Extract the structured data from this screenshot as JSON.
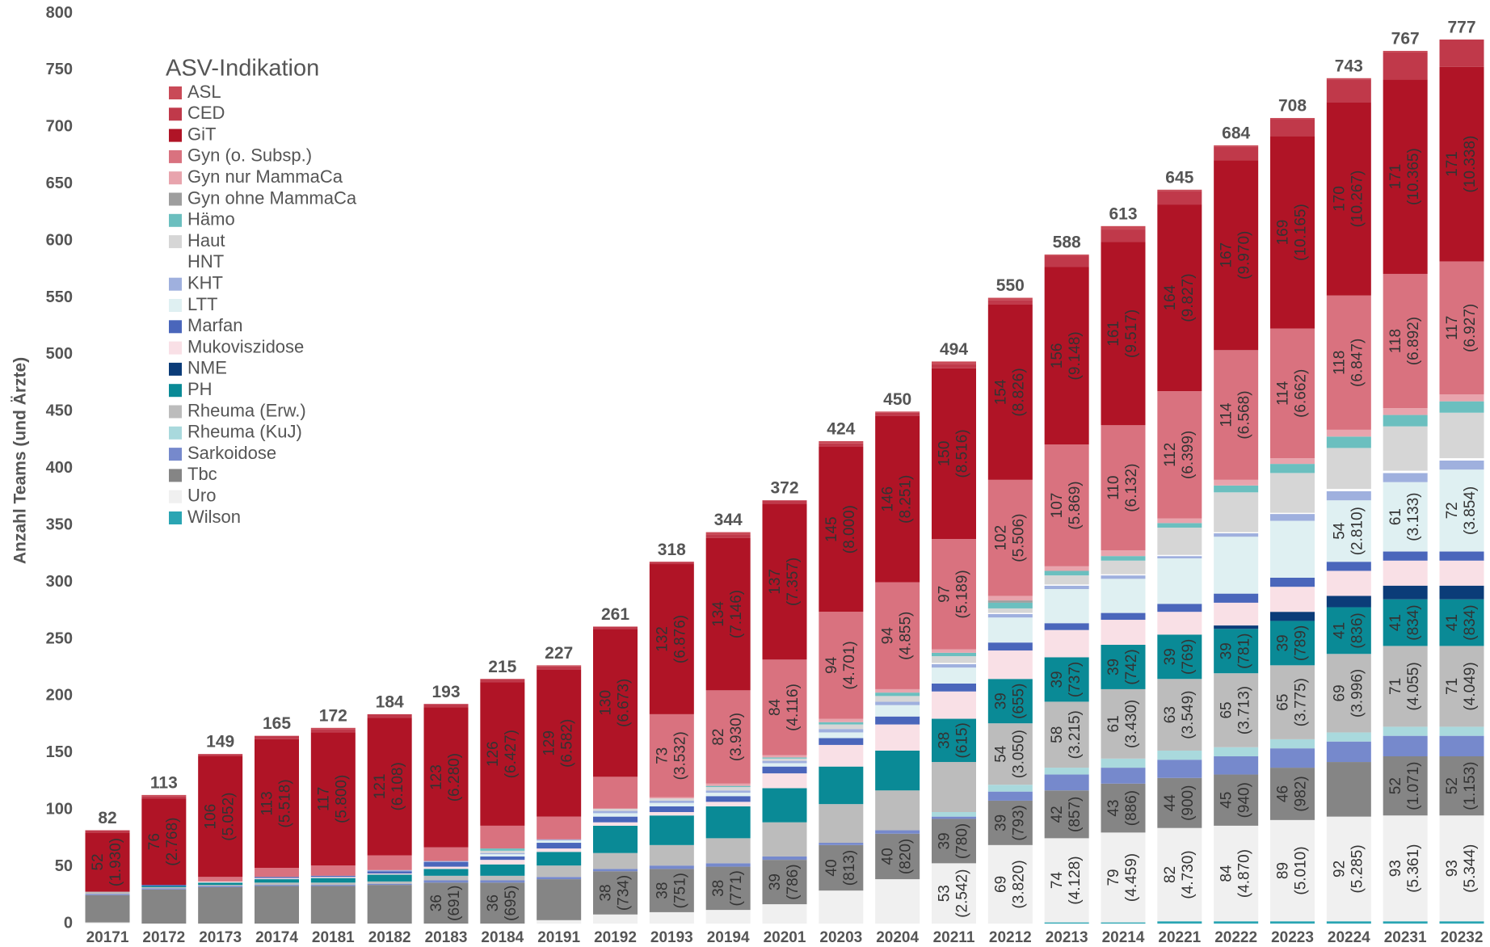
{
  "chart_data": {
    "type": "stacked_bar",
    "y_label": "Anzahl Teams (und Ärzte)",
    "legend_title": "ASV-Indikation",
    "categories": [
      "20171",
      "20172",
      "20173",
      "20174",
      "20181",
      "20182",
      "20183",
      "20184",
      "20191",
      "20192",
      "20193",
      "20194",
      "20201",
      "20203",
      "20204",
      "20211",
      "20212",
      "20213",
      "20214",
      "20221",
      "20222",
      "20223",
      "20224",
      "20231",
      "20232"
    ],
    "totals": [
      82,
      113,
      149,
      165,
      172,
      184,
      193,
      215,
      227,
      261,
      318,
      344,
      372,
      424,
      450,
      494,
      550,
      588,
      613,
      645,
      684,
      708,
      743,
      767,
      777
    ],
    "ylim": [
      0,
      800
    ],
    "yticks": [
      0,
      50,
      100,
      150,
      200,
      250,
      300,
      350,
      400,
      450,
      500,
      550,
      600,
      650,
      700,
      750,
      800
    ],
    "series": [
      {
        "name": "ASL",
        "color": "#c94a57",
        "values": [
          0,
          1,
          0,
          0,
          1,
          0,
          0,
          0,
          1,
          0,
          0,
          2,
          0,
          2,
          1,
          2,
          2,
          1,
          3,
          1,
          1,
          1,
          1,
          1,
          0
        ]
      },
      {
        "name": "CED",
        "color": "#c0394a",
        "values": [
          2,
          2,
          2,
          3,
          3,
          3,
          3,
          3,
          3,
          2,
          2,
          3,
          3,
          3,
          3,
          4,
          4,
          10,
          11,
          12,
          12,
          15,
          20,
          24,
          24
        ]
      },
      {
        "name": "GiT",
        "color": "#b01426",
        "values": [
          52,
          76,
          106,
          113,
          117,
          121,
          123,
          126,
          129,
          130,
          132,
          134,
          137,
          145,
          146,
          150,
          154,
          156,
          161,
          164,
          167,
          169,
          170,
          171,
          171
        ],
        "value_labels": [
          "52\n(1.930)",
          "76\n(2.768)",
          "106\n(5.052)",
          "113\n(5.518)",
          "117\n(5.800)",
          "121\n(6.108)",
          "123\n(6.280)",
          "126\n(6.427)",
          "129\n(6.582)",
          "130\n(6.673)",
          "132\n(6.876)",
          "134\n(7.146)",
          "137\n(7.357)",
          "145\n(8.000)",
          "146\n(8.251)",
          "150\n(8.516)",
          "154\n(8.826)",
          "156\n(9.148)",
          "161\n(9.517)",
          "164\n(9.827)",
          "167\n(9.970)",
          "169\n(10.165)",
          "170\n(10.267)",
          "171\n(10.365)",
          "171\n(10.338)"
        ]
      },
      {
        "name": "Gyn (o. Subsp.)",
        "color": "#d9727f",
        "values": [
          0,
          0,
          4,
          8,
          9,
          13,
          12,
          20,
          20,
          28,
          73,
          82,
          84,
          94,
          94,
          97,
          102,
          107,
          110,
          112,
          114,
          114,
          118,
          118,
          117
        ],
        "value_labels": [
          null,
          null,
          null,
          null,
          null,
          null,
          null,
          null,
          null,
          null,
          "73\n(3.532)",
          "82\n(3.930)",
          "84\n(4.116)",
          "94\n(4.701)",
          "94\n(4.855)",
          "97\n(5.189)",
          "102\n(5.506)",
          "107\n(5.869)",
          "110\n(6.132)",
          "112\n(6.399)",
          "114\n(6.568)",
          "114\n(6.662)",
          "118\n(6.847)",
          "118\n(6.892)",
          "117\n(6.927)"
        ]
      },
      {
        "name": "Gyn nur MammaCa",
        "color": "#e8a4ad",
        "values": [
          0,
          0,
          0,
          0,
          0,
          0,
          0,
          0,
          0,
          0,
          1,
          2,
          2,
          3,
          3,
          3,
          4,
          4,
          5,
          4,
          5,
          5,
          6,
          6,
          6
        ]
      },
      {
        "name": "Gyn ohne MammaCa",
        "color": "#9e9e9e",
        "values": [
          0,
          0,
          0,
          0,
          0,
          0,
          0,
          0,
          0,
          0,
          0,
          0,
          0,
          0,
          0,
          0,
          2,
          0,
          0,
          0,
          0,
          0,
          0,
          0,
          0
        ]
      },
      {
        "name": "Hämo",
        "color": "#6bbfbf",
        "values": [
          0,
          0,
          0,
          0,
          0,
          0,
          0,
          2,
          0,
          0,
          0,
          1,
          1,
          2,
          3,
          3,
          5,
          4,
          4,
          4,
          6,
          8,
          10,
          10,
          10
        ]
      },
      {
        "name": "Haut",
        "color": "#d6d6d6",
        "values": [
          0,
          0,
          0,
          0,
          0,
          0,
          0,
          2,
          0,
          2,
          2,
          3,
          2,
          4,
          5,
          6,
          4,
          8,
          12,
          24,
          35,
          35,
          36,
          39,
          40
        ]
      },
      {
        "name": "HNT",
        "color": "#ffffff",
        "values": [
          0,
          0,
          0,
          0,
          0,
          0,
          0,
          0,
          0,
          0,
          0,
          0,
          0,
          0,
          0,
          1,
          1,
          1,
          1,
          1,
          1,
          1,
          2,
          2,
          2
        ]
      },
      {
        "name": "KHT",
        "color": "#9fb0de",
        "values": [
          0,
          0,
          0,
          0,
          0,
          1,
          1,
          1,
          1,
          2,
          2,
          2,
          2,
          3,
          3,
          3,
          3,
          3,
          3,
          2,
          3,
          6,
          8,
          8,
          8
        ]
      },
      {
        "name": "LTT",
        "color": "#dff0f2",
        "values": [
          0,
          0,
          0,
          0,
          0,
          0,
          0,
          2,
          2,
          3,
          3,
          3,
          3,
          5,
          10,
          14,
          22,
          30,
          30,
          40,
          50,
          50,
          54,
          61,
          72
        ],
        "value_labels": [
          null,
          null,
          null,
          null,
          null,
          null,
          null,
          null,
          null,
          null,
          null,
          null,
          null,
          null,
          null,
          null,
          null,
          null,
          null,
          null,
          null,
          null,
          "54\n(2.810)",
          "61\n(3.133)",
          "72\n(3.854)"
        ]
      },
      {
        "name": "Marfan",
        "color": "#4a66bb",
        "values": [
          0,
          1,
          0,
          1,
          1,
          2,
          4,
          3,
          5,
          5,
          5,
          5,
          6,
          6,
          7,
          7,
          7,
          6,
          6,
          7,
          8,
          8,
          8,
          8,
          8
        ]
      },
      {
        "name": "Mukoviszidose",
        "color": "#f9e0e6",
        "values": [
          0,
          0,
          1,
          1,
          1,
          1,
          2,
          4,
          3,
          3,
          3,
          4,
          13,
          19,
          23,
          24,
          25,
          24,
          22,
          20,
          20,
          22,
          22,
          22,
          22
        ]
      },
      {
        "name": "NME",
        "color": "#0b3c78",
        "values": [
          0,
          0,
          0,
          0,
          0,
          0,
          0,
          0,
          0,
          0,
          0,
          0,
          0,
          0,
          0,
          0,
          0,
          0,
          0,
          0,
          3,
          8,
          10,
          12,
          12
        ]
      },
      {
        "name": "PH",
        "color": "#0a8a96",
        "values": [
          0,
          1,
          2,
          3,
          4,
          6,
          6,
          10,
          12,
          24,
          26,
          28,
          30,
          33,
          35,
          38,
          39,
          39,
          39,
          39,
          39,
          39,
          41,
          41,
          41
        ],
        "value_labels": [
          null,
          null,
          null,
          null,
          null,
          null,
          null,
          null,
          null,
          null,
          null,
          null,
          null,
          null,
          null,
          "38\n(615)",
          "39\n(655)",
          "39\n(737)",
          "39\n(742)",
          "39\n(769)",
          "39\n(781)",
          "39\n(789)",
          "41\n(836)",
          "41\n(834)",
          "41\n(834)"
        ]
      },
      {
        "name": "Rheuma (Erw.)",
        "color": "#bcbcbc",
        "values": [
          2,
          1,
          1,
          2,
          2,
          2,
          4,
          4,
          10,
          14,
          18,
          22,
          30,
          34,
          35,
          44,
          54,
          58,
          61,
          63,
          65,
          65,
          69,
          71,
          71
        ],
        "value_labels": [
          null,
          null,
          null,
          null,
          null,
          null,
          null,
          null,
          null,
          null,
          null,
          null,
          null,
          null,
          null,
          null,
          "54\n(3.050)",
          "58\n(3.215)",
          "61\n(3.430)",
          "63\n(3.549)",
          "65\n(3.713)",
          "65\n(3.775)",
          "69\n(3.996)",
          "71\n(4.055)",
          "71\n(4.049)"
        ]
      },
      {
        "name": "Rheuma (KuJ)",
        "color": "#a9d9dd",
        "values": [
          0,
          0,
          0,
          0,
          0,
          0,
          0,
          0,
          0,
          0,
          0,
          0,
          0,
          0,
          0,
          4,
          6,
          6,
          8,
          8,
          8,
          8,
          8,
          8,
          8
        ]
      },
      {
        "name": "Sarkoidose",
        "color": "#7689cc",
        "values": [
          1,
          1,
          1,
          1,
          1,
          1,
          2,
          2,
          2,
          2,
          3,
          3,
          3,
          2,
          3,
          2,
          8,
          14,
          14,
          16,
          16,
          17,
          18,
          18,
          18
        ]
      },
      {
        "name": "Tbc",
        "color": "#858585",
        "values": [
          24,
          30,
          32,
          33,
          33,
          34,
          36,
          36,
          36,
          38,
          38,
          38,
          39,
          40,
          40,
          39,
          39,
          42,
          43,
          44,
          45,
          46,
          48,
          52,
          52
        ],
        "value_labels": [
          null,
          null,
          null,
          null,
          null,
          null,
          "36\n(691)",
          "36\n(695)",
          null,
          "38\n(734)",
          "38\n(751)",
          "38\n(771)",
          "39\n(786)",
          "40\n(813)",
          "40\n(820)",
          "39\n(780)",
          "39\n(793)",
          "42\n(857)",
          "43\n(886)",
          "44\n(900)",
          "45\n(940)",
          "46\n(982)",
          null,
          "52\n(1.071)",
          "52\n(1.153)"
        ]
      },
      {
        "name": "Uro",
        "color": "#f0f0f0",
        "values": [
          1,
          0,
          0,
          0,
          0,
          0,
          0,
          0,
          3,
          8,
          10,
          12,
          17,
          29,
          39,
          53,
          69,
          74,
          79,
          82,
          84,
          89,
          92,
          93,
          93
        ],
        "value_labels": [
          null,
          null,
          null,
          null,
          null,
          null,
          null,
          null,
          null,
          null,
          null,
          null,
          null,
          null,
          null,
          "53\n(2.542)",
          "69\n(3.820)",
          "74\n(4.128)",
          "79\n(4.459)",
          "82\n(4.730)",
          "84\n(4.870)",
          "89\n(5.010)",
          "92\n(5.285)",
          "93\n(5.361)",
          "93\n(5.344)"
        ]
      },
      {
        "name": "Wilson",
        "color": "#2aa5b3",
        "values": [
          0,
          0,
          0,
          0,
          0,
          0,
          0,
          0,
          0,
          0,
          0,
          0,
          0,
          0,
          0,
          0,
          0,
          1,
          1,
          2,
          2,
          2,
          2,
          2,
          2
        ]
      }
    ]
  }
}
